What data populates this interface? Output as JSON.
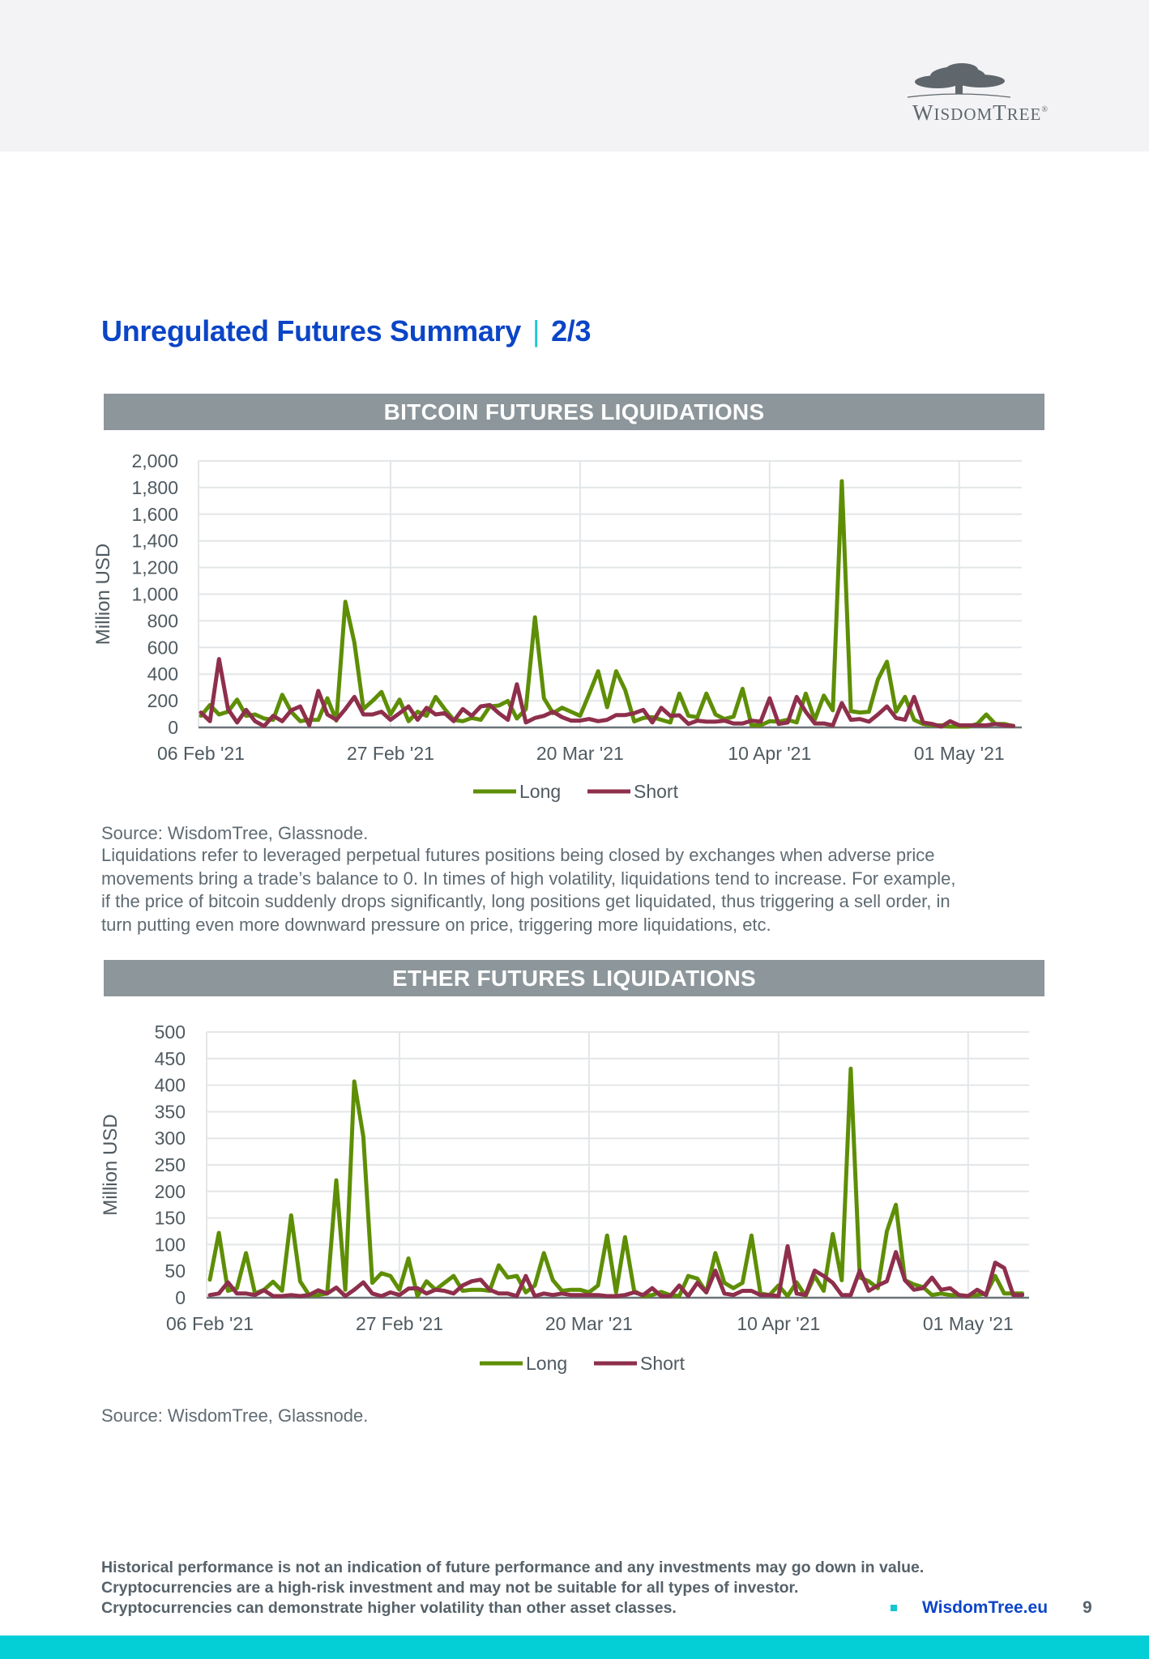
{
  "header": {
    "logo_text": "WisdomTree®"
  },
  "page": {
    "title": "Unregulated Futures Summary",
    "separator": "|",
    "subtitle": "2/3"
  },
  "colors": {
    "long": "#5e8e05",
    "short": "#8e2f4c",
    "title": "#0b45c7",
    "bar": "#8c969b",
    "footer_bar": "#04ced6"
  },
  "bitcoin": {
    "header": "BITCOIN FUTURES LIQUIDATIONS",
    "source": "Source: WisdomTree, Glassnode.",
    "description_lines": [
      "Liquidations refer to leveraged perpetual futures positions being closed by exchanges when adverse price",
      "movements bring a trade’s balance to 0. In times of high volatility, liquidations tend to increase. For example,",
      "if the price of bitcoin suddenly drops significantly, long positions get liquidated, thus triggering a sell order, in",
      "turn putting even more downward pressure on price, triggering more liquidations, etc."
    ]
  },
  "ether": {
    "header": "ETHER FUTURES LIQUIDATIONS",
    "source": "Source: WisdomTree, Glassnode."
  },
  "chart_data": [
    {
      "type": "line",
      "title": "BITCOIN FUTURES LIQUIDATIONS",
      "ylabel": "Million USD",
      "xlabel": "",
      "x_start": "06 Feb '21",
      "x_frequency": "daily",
      "x_ticks": [
        {
          "day": 0,
          "label": "06 Feb '21"
        },
        {
          "day": 21,
          "label": "27 Feb '21"
        },
        {
          "day": 42,
          "label": "20 Mar '21"
        },
        {
          "day": 63,
          "label": "10 Apr '21"
        },
        {
          "day": 84,
          "label": "01 May '21"
        }
      ],
      "y_ticks": [
        "0",
        "200",
        "400",
        "600",
        "800",
        "1,000",
        "1,200",
        "1,400",
        "1,600",
        "1,800",
        "2,000"
      ],
      "ylim": [
        0,
        2000
      ],
      "grid": true,
      "legend": "bottom",
      "series": [
        {
          "name": "Long",
          "values": [
            87,
            168,
            97,
            118,
            209,
            87,
            97,
            67,
            57,
            245,
            118,
            47,
            57,
            57,
            219,
            51,
            943,
            635,
            138,
            199,
            266,
            97,
            209,
            47,
            118,
            87,
            229,
            138,
            57,
            47,
            71,
            57,
            158,
            164,
            199,
            67,
            138,
            827,
            219,
            107,
            148,
            118,
            87,
            250,
            422,
            152,
            422,
            280,
            45,
            71,
            77,
            57,
            37,
            254,
            87,
            77,
            254,
            97,
            63,
            81,
            290,
            16,
            16,
            47,
            43,
            57,
            37,
            254,
            57,
            239,
            128,
            1848,
            122,
            112,
            118,
            361,
            493,
            118,
            229,
            57,
            26,
            16,
            16,
            6,
            6,
            6,
            26,
            97,
            26,
            26,
            10
          ]
        },
        {
          "name": "Short",
          "values": [
            112,
            47,
            513,
            138,
            37,
            132,
            47,
            10,
            87,
            47,
            128,
            158,
            16,
            274,
            97,
            57,
            138,
            229,
            97,
            97,
            118,
            57,
            107,
            158,
            57,
            148,
            97,
            107,
            47,
            138,
            87,
            158,
            168,
            107,
            57,
            324,
            37,
            71,
            87,
            118,
            77,
            51,
            51,
            63,
            47,
            57,
            93,
            93,
            107,
            132,
            37,
            148,
            87,
            91,
            26,
            51,
            43,
            43,
            51,
            30,
            30,
            51,
            43,
            219,
            26,
            37,
            229,
            118,
            30,
            30,
            16,
            183,
            57,
            63,
            43,
            97,
            158,
            71,
            57,
            229,
            37,
            26,
            6,
            47,
            16,
            16,
            16,
            16,
            26,
            16,
            12
          ]
        }
      ]
    },
    {
      "type": "line",
      "title": "ETHER FUTURES LIQUIDATIONS",
      "ylabel": "Million USD",
      "xlabel": "",
      "x_start": "06 Feb '21",
      "x_frequency": "daily",
      "x_ticks": [
        {
          "day": 0,
          "label": "06 Feb '21"
        },
        {
          "day": 21,
          "label": "27 Feb '21"
        },
        {
          "day": 42,
          "label": "20 Mar '21"
        },
        {
          "day": 63,
          "label": "10 Apr '21"
        },
        {
          "day": 84,
          "label": "01 May '21"
        }
      ],
      "y_ticks": [
        "0",
        "50",
        "100",
        "150",
        "200",
        "250",
        "300",
        "350",
        "400",
        "450",
        "500"
      ],
      "ylim": [
        0,
        500
      ],
      "grid": true,
      "legend": "bottom",
      "series": [
        {
          "name": "Long",
          "values": [
            34,
            122,
            13,
            18,
            84,
            8,
            15,
            30,
            13,
            155,
            31,
            5,
            5,
            8,
            221,
            15,
            407,
            303,
            28,
            46,
            41,
            15,
            74,
            3,
            31,
            15,
            28,
            41,
            13,
            15,
            15,
            13,
            61,
            38,
            41,
            10,
            23,
            84,
            33,
            13,
            15,
            15,
            10,
            23,
            117,
            10,
            114,
            13,
            3,
            5,
            11,
            5,
            3,
            41,
            36,
            10,
            84,
            28,
            18,
            28,
            117,
            8,
            5,
            23,
            3,
            29,
            3,
            41,
            13,
            120,
            33,
            431,
            38,
            31,
            18,
            125,
            175,
            33,
            25,
            20,
            5,
            8,
            5,
            5,
            3,
            5,
            8,
            41,
            8,
            8,
            8
          ]
        },
        {
          "name": "Short",
          "values": [
            5,
            8,
            29,
            8,
            8,
            5,
            14,
            3,
            3,
            5,
            3,
            5,
            14,
            8,
            19,
            3,
            15,
            29,
            8,
            3,
            10,
            5,
            17,
            18,
            8,
            15,
            13,
            8,
            23,
            31,
            34,
            15,
            8,
            8,
            3,
            41,
            3,
            8,
            5,
            8,
            5,
            5,
            5,
            5,
            3,
            3,
            5,
            10,
            5,
            18,
            3,
            3,
            23,
            3,
            28,
            10,
            51,
            8,
            5,
            13,
            13,
            5,
            5,
            3,
            97,
            8,
            5,
            51,
            41,
            28,
            5,
            5,
            51,
            13,
            23,
            31,
            86,
            33,
            15,
            18,
            38,
            15,
            18,
            5,
            3,
            15,
            5,
            66,
            56,
            5,
            5
          ]
        }
      ]
    }
  ],
  "footer": {
    "disclaimer_lines": [
      "Historical performance is not an indication of future performance and any investments may go down in value.",
      "Cryptocurrencies are a high-risk investment and may not be suitable for all types of investor.",
      "Cryptocurrencies can demonstrate higher volatility than other asset classes."
    ],
    "link": "WisdomTree.eu",
    "page_number": "9"
  }
}
